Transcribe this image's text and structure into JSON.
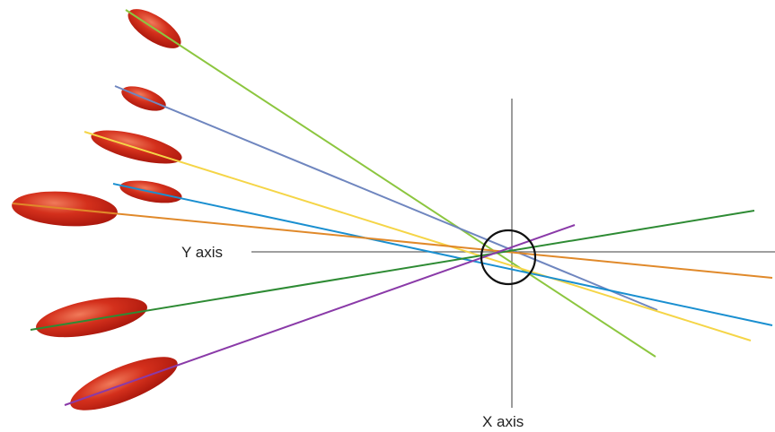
{
  "labels": {
    "y_axis": "Y axis",
    "x_axis": "X axis"
  },
  "colors": {
    "axis": "#666666",
    "ellipse_dark": "#a8160c",
    "ellipse_mid": "#d4301c",
    "ellipse_light": "#f07a5a",
    "center_circle": "#111111"
  },
  "beams": [
    {
      "name": "lime-beam",
      "color": "#8cc63f"
    },
    {
      "name": "blue-beam",
      "color": "#6f86bf"
    },
    {
      "name": "yellow-beam",
      "color": "#f5d547"
    },
    {
      "name": "cyan-beam",
      "color": "#1a8fd0"
    },
    {
      "name": "orange-beam",
      "color": "#e0892a"
    },
    {
      "name": "green-beam",
      "color": "#2e8b34"
    },
    {
      "name": "purple-beam",
      "color": "#8a3aa8"
    }
  ]
}
